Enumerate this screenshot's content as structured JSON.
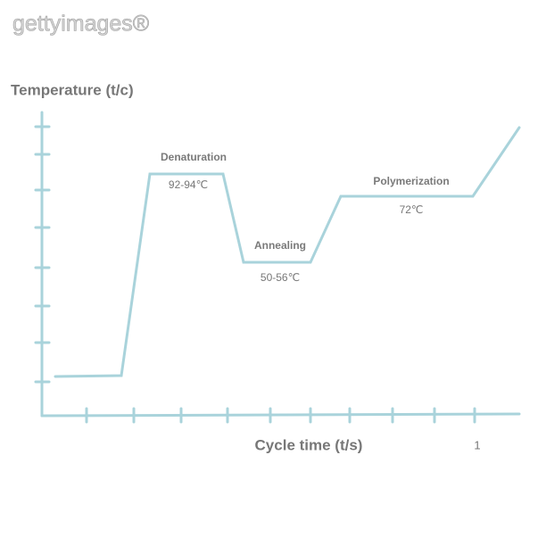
{
  "watermark": "gettyimages®",
  "axes": {
    "y_label": "Temperature (t/c)",
    "x_label": "Cycle time (t/s)",
    "x_tick_label": "1"
  },
  "phases": [
    {
      "name": "Denaturation",
      "temperature": "92-94℃"
    },
    {
      "name": "Annealing",
      "temperature": "50-56℃"
    },
    {
      "name": "Polymerization",
      "temperature": "72℃"
    }
  ]
}
